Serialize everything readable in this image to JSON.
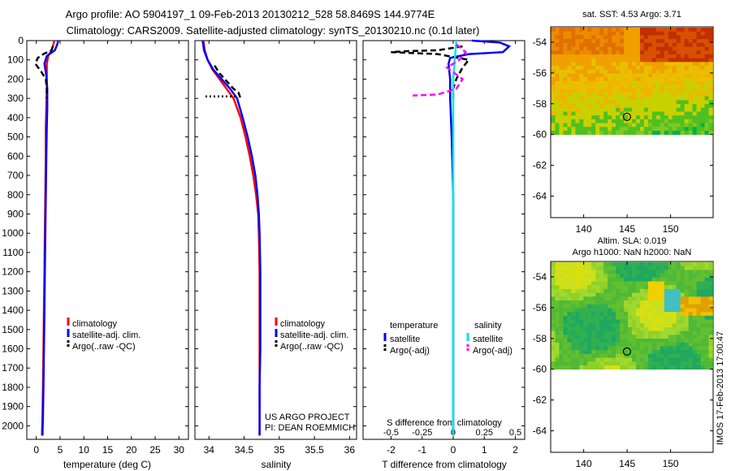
{
  "header": {
    "title_line1": "Argo profile: AO 5904197_1 09-Feb-2013 20130212_528 58.8469S 144.9774E",
    "title_line2": "Climatology: CARS2009. Satellite-adjusted climatology: synTS_20130210.nc (0.1d later)"
  },
  "colors": {
    "climatology": "#ff0000",
    "satellite": "#0000ff",
    "argo": "#000000",
    "sat_salinity": "#00e5ee",
    "argo_salinity": "#ff00ff"
  },
  "depth_ticks": [
    0,
    100,
    200,
    300,
    400,
    500,
    600,
    700,
    800,
    900,
    1000,
    1100,
    1200,
    1300,
    1400,
    1500,
    1600,
    1700,
    1800,
    1900,
    2000
  ],
  "chart_data": [
    {
      "id": "temperature",
      "type": "line",
      "xlabel": "temperature (deg C)",
      "xlim": [
        -2,
        32
      ],
      "ylim": [
        2070,
        0
      ],
      "xticks": [
        0,
        5,
        10,
        15,
        20,
        25,
        30
      ],
      "legend": [
        "climatology",
        "satellite-adj. clim.",
        "Argo(..raw -QC)"
      ],
      "legend_position": "lower-right",
      "series": [
        {
          "name": "climatology",
          "color": "red",
          "x": [
            3.8,
            3.6,
            3.2,
            2.5,
            2.2,
            2.2,
            2.2,
            2.1,
            2.0,
            2.0,
            1.9,
            1.8,
            1.7,
            1.6,
            1.5,
            1.4,
            1.3,
            1.2
          ],
          "y": [
            0,
            20,
            50,
            80,
            120,
            180,
            250,
            350,
            450,
            600,
            800,
            1000,
            1200,
            1400,
            1600,
            1800,
            1950,
            2050
          ]
        },
        {
          "name": "satellite-adj. clim.",
          "color": "blue",
          "x": [
            4.6,
            4.4,
            3.9,
            2.2,
            1.7,
            2.1,
            2.3,
            2.3,
            2.2,
            2.1,
            2.0,
            1.9,
            1.8,
            1.7,
            1.6,
            1.5,
            1.4,
            1.3
          ],
          "y": [
            0,
            20,
            50,
            80,
            120,
            180,
            250,
            350,
            450,
            600,
            800,
            1000,
            1200,
            1400,
            1600,
            1800,
            1950,
            2050
          ]
        },
        {
          "name": "Argo(..raw -QC)",
          "color": "black",
          "x": [
            3.5,
            3.2,
            1.5,
            0.3,
            -0.2,
            1.0,
            2.0,
            2.2,
            2.2
          ],
          "y": [
            30,
            50,
            70,
            90,
            120,
            160,
            200,
            250,
            300
          ]
        }
      ]
    },
    {
      "id": "salinity",
      "type": "line",
      "xlabel": "salinity",
      "xlim": [
        33.8,
        36.1
      ],
      "ylim": [
        2070,
        0
      ],
      "xticks": [
        34,
        34.5,
        35,
        35.5,
        36
      ],
      "legend": [
        "climatology",
        "satellite-adj. clim.",
        "Argo(..raw -QC)"
      ],
      "legend_position": "lower-right",
      "annotation": [
        "US ARGO PROJECT",
        "PI: DEAN ROEMMICH"
      ],
      "series": [
        {
          "name": "climatology",
          "color": "red",
          "x": [
            33.92,
            33.94,
            33.98,
            34.05,
            34.15,
            34.25,
            34.35,
            34.45,
            34.52,
            34.58,
            34.63,
            34.67,
            34.7,
            34.71,
            34.72,
            34.72,
            34.72,
            34.72,
            34.72
          ],
          "y": [
            0,
            50,
            100,
            150,
            200,
            250,
            300,
            400,
            500,
            600,
            700,
            800,
            900,
            1000,
            1200,
            1400,
            1600,
            1800,
            2050
          ]
        },
        {
          "name": "satellite-adj. clim.",
          "color": "blue",
          "x": [
            33.91,
            33.93,
            33.98,
            34.06,
            34.18,
            34.3,
            34.4,
            34.48,
            34.55,
            34.61,
            34.66,
            34.69,
            34.71,
            34.72,
            34.73,
            34.73,
            34.73,
            34.72,
            34.72
          ],
          "y": [
            0,
            50,
            100,
            150,
            200,
            250,
            300,
            400,
            500,
            600,
            700,
            800,
            900,
            1000,
            1200,
            1400,
            1600,
            1800,
            2050
          ]
        },
        {
          "name": "Argo(..raw -QC)",
          "color": "black",
          "x": [
            34.08,
            34.15,
            34.25,
            34.35,
            34.42,
            34.45
          ],
          "y": [
            130,
            170,
            210,
            250,
            270,
            300
          ]
        },
        {
          "name": "Argo(..raw -QC) 290m",
          "color": "black",
          "x": [
            33.95,
            34.4
          ],
          "y": [
            290,
            290
          ]
        }
      ]
    },
    {
      "id": "difference",
      "type": "line",
      "xlabel": "T difference from climatology",
      "xlabel2": "S difference from climatology",
      "xlim": [
        -2.9,
        2.3
      ],
      "ylim": [
        2070,
        0
      ],
      "xticks": [
        -2,
        -1,
        0,
        1,
        2
      ],
      "xticks2": [
        "-0.5",
        "-0.25",
        "0",
        "0.25",
        "0.5"
      ],
      "legend": {
        "temperature": [
          "satellite",
          "Argo(-adj)"
        ],
        "salinity": [
          "satellite",
          "Argo(-adj)"
        ]
      },
      "legend_headers": [
        "temperature",
        "salinity"
      ],
      "series": [
        {
          "name": "temperature satellite",
          "color": "blue",
          "x": [
            0.6,
            1.5,
            1.8,
            1.6,
            0.5,
            -0.1,
            -0.15,
            -0.1,
            -0.1,
            -0.05,
            0,
            0,
            0,
            0
          ],
          "y": [
            0,
            10,
            30,
            60,
            70,
            90,
            120,
            200,
            300,
            500,
            800,
            1200,
            1600,
            2050
          ]
        },
        {
          "name": "temperature Argo(-adj)",
          "color": "black",
          "x": [
            0.3,
            -0.5,
            -1.5,
            -2.0,
            -0.5,
            0.5,
            0.3,
            0.1,
            0,
            0
          ],
          "y": [
            30,
            50,
            55,
            60,
            70,
            100,
            140,
            200,
            250,
            300
          ]
        },
        {
          "name": "salinity satellite",
          "color": "cyan",
          "x": [
            0.1,
            0.05,
            0,
            0,
            0,
            0,
            0
          ],
          "y": [
            0,
            100,
            200,
            500,
            1000,
            1500,
            2050
          ]
        },
        {
          "name": "salinity Argo(-adj)",
          "color": "magenta",
          "x": [
            0.1,
            0.4,
            0.2,
            -0.2,
            0.3,
            0.1,
            -0.5,
            -1.3
          ],
          "y": [
            20,
            60,
            100,
            140,
            200,
            250,
            280,
            285
          ]
        }
      ]
    },
    {
      "id": "sst_map",
      "type": "heatmap",
      "title": "sat. SST: 4.53 Argo: 3.71",
      "xticks": [
        140,
        145,
        150
      ],
      "yticks": [
        -54,
        -56,
        -58,
        -60,
        -62,
        -64
      ],
      "xlim": [
        136.2,
        154.9
      ],
      "ylim": [
        -65.4,
        -53.0
      ],
      "data_lat_range": [
        -60,
        -53
      ],
      "marker": {
        "lon": 144.98,
        "lat": -58.85
      }
    },
    {
      "id": "sla_map",
      "type": "heatmap",
      "title_line1": "Altim. SLA: 0.019",
      "title_line2": "Argo h1000: NaN h2000: NaN",
      "xticks": [
        140,
        145,
        150
      ],
      "yticks": [
        -54,
        -56,
        -58,
        -60,
        -62,
        -64
      ],
      "xlim": [
        136.2,
        154.9
      ],
      "ylim": [
        -65.4,
        -53.0
      ],
      "data_lat_range": [
        -60,
        -53
      ],
      "marker": {
        "lon": 144.98,
        "lat": -58.85
      }
    }
  ],
  "side_stamp": "IMOS 17-Feb-2013 17:00:47"
}
